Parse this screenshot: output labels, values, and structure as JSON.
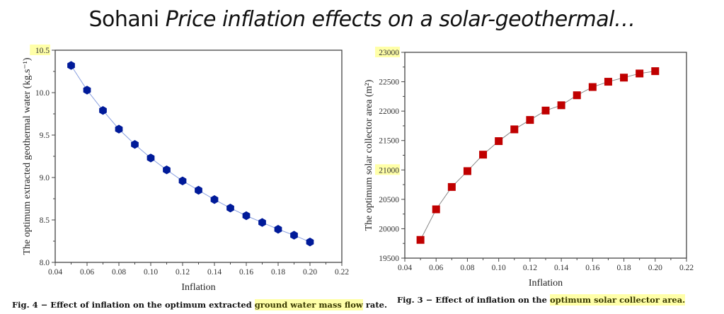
{
  "slide": {
    "title_author": "Sohani",
    "title_italic": "Price inflation effects on a solar-geothermal…"
  },
  "figures": {
    "left_caption_prefix": "Fig. 4 − Effect of inflation on the optimum extracted ",
    "left_caption_highlight": "ground water mass flow",
    "left_caption_suffix": " rate.",
    "right_caption_prefix": "Fig. 3 − Effect of inflation on the ",
    "right_caption_highlight": "optimum solar collector area."
  },
  "colors": {
    "highlight": "#ffffa8",
    "left_marker": "#001a99",
    "left_line": "#8aa0e0",
    "right_marker": "#c00000",
    "right_line": "#888888"
  },
  "chart_data": [
    {
      "type": "line",
      "title": "",
      "xlabel": "Inflation",
      "ylabel": "The optimum extracted geothermal water (kg.s⁻¹)",
      "xlim": [
        0.04,
        0.22
      ],
      "ylim": [
        8.0,
        10.5
      ],
      "xticks": [
        "0.04",
        "0.06",
        "0.08",
        "0.10",
        "0.12",
        "0.14",
        "0.16",
        "0.18",
        "0.20",
        "0.22"
      ],
      "yticks": [
        "8.0",
        "8.5",
        "9.0",
        "9.5",
        "10.0",
        "10.5"
      ],
      "highlighted_ytick": "10.5",
      "marker": "hexagon",
      "grid": false,
      "series": [
        {
          "name": "Extracted geothermal water",
          "x": [
            0.05,
            0.06,
            0.07,
            0.08,
            0.09,
            0.1,
            0.11,
            0.12,
            0.13,
            0.14,
            0.15,
            0.16,
            0.17,
            0.18,
            0.19,
            0.2
          ],
          "y": [
            10.32,
            10.03,
            9.79,
            9.57,
            9.39,
            9.23,
            9.09,
            8.96,
            8.85,
            8.74,
            8.64,
            8.55,
            8.47,
            8.39,
            8.32,
            8.24
          ]
        }
      ]
    },
    {
      "type": "line",
      "title": "",
      "xlabel": "Inflation",
      "ylabel": "The optimum solar collector area (m²)",
      "xlim": [
        0.04,
        0.22
      ],
      "ylim": [
        19500,
        23000
      ],
      "xticks": [
        "0.04",
        "0.06",
        "0.08",
        "0.10",
        "0.12",
        "0.14",
        "0.16",
        "0.18",
        "0.20",
        "0.22"
      ],
      "yticks": [
        "19500",
        "20000",
        "20500",
        "21000",
        "21500",
        "22000",
        "22500",
        "23000"
      ],
      "highlighted_yticks": [
        "23000",
        "21000"
      ],
      "marker": "square",
      "grid": false,
      "series": [
        {
          "name": "Solar collector area",
          "x": [
            0.05,
            0.06,
            0.07,
            0.08,
            0.09,
            0.1,
            0.11,
            0.12,
            0.13,
            0.14,
            0.15,
            0.16,
            0.17,
            0.18,
            0.19,
            0.2
          ],
          "y": [
            19810,
            20330,
            20710,
            20980,
            21260,
            21490,
            21690,
            21850,
            22010,
            22100,
            22270,
            22410,
            22500,
            22570,
            22640,
            22680
          ]
        }
      ]
    }
  ]
}
